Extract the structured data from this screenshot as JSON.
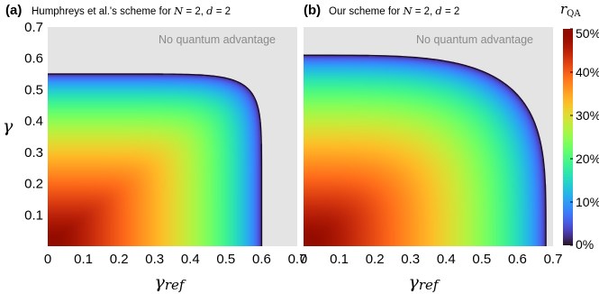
{
  "chart_data": [
    {
      "type": "heatmap",
      "panel_label": "(a)",
      "title": "Humphreys et al.'s scheme for N = 2, d = 2",
      "xlabel": "γref",
      "ylabel": "γ",
      "xlim": [
        0,
        0.7
      ],
      "ylim": [
        0,
        0.7
      ],
      "x_ticks": [
        "0",
        "0.1",
        "0.2",
        "0.3",
        "0.4",
        "0.5",
        "0.6",
        "0.7"
      ],
      "y_ticks": [
        "0.1",
        "0.2",
        "0.3",
        "0.4",
        "0.5",
        "0.6",
        "0.7"
      ],
      "region_label": "No quantum advantage",
      "boundary_x_intercept": 0.6,
      "boundary_y_intercept": 0.55,
      "boundary_exponent": 9,
      "max_value_percent": 50
    },
    {
      "type": "heatmap",
      "panel_label": "(b)",
      "title": "Our scheme for N = 2, d = 2",
      "xlabel": "γref",
      "ylabel": "",
      "xlim": [
        0,
        0.7
      ],
      "ylim": [
        0,
        0.7
      ],
      "x_ticks": [
        "0",
        "0.1",
        "0.2",
        "0.3",
        "0.4",
        "0.5",
        "0.6",
        "0.7"
      ],
      "y_ticks": [],
      "region_label": "No quantum advantage",
      "boundary_x_intercept": 0.68,
      "boundary_y_intercept": 0.61,
      "boundary_exponent": 4,
      "max_value_percent": 50
    }
  ],
  "colorbar": {
    "label": "rQA",
    "ticks": [
      "0%",
      "10%",
      "20%",
      "30%",
      "40%",
      "50%"
    ],
    "min": 0,
    "max": 50,
    "colormap": "turbo"
  }
}
